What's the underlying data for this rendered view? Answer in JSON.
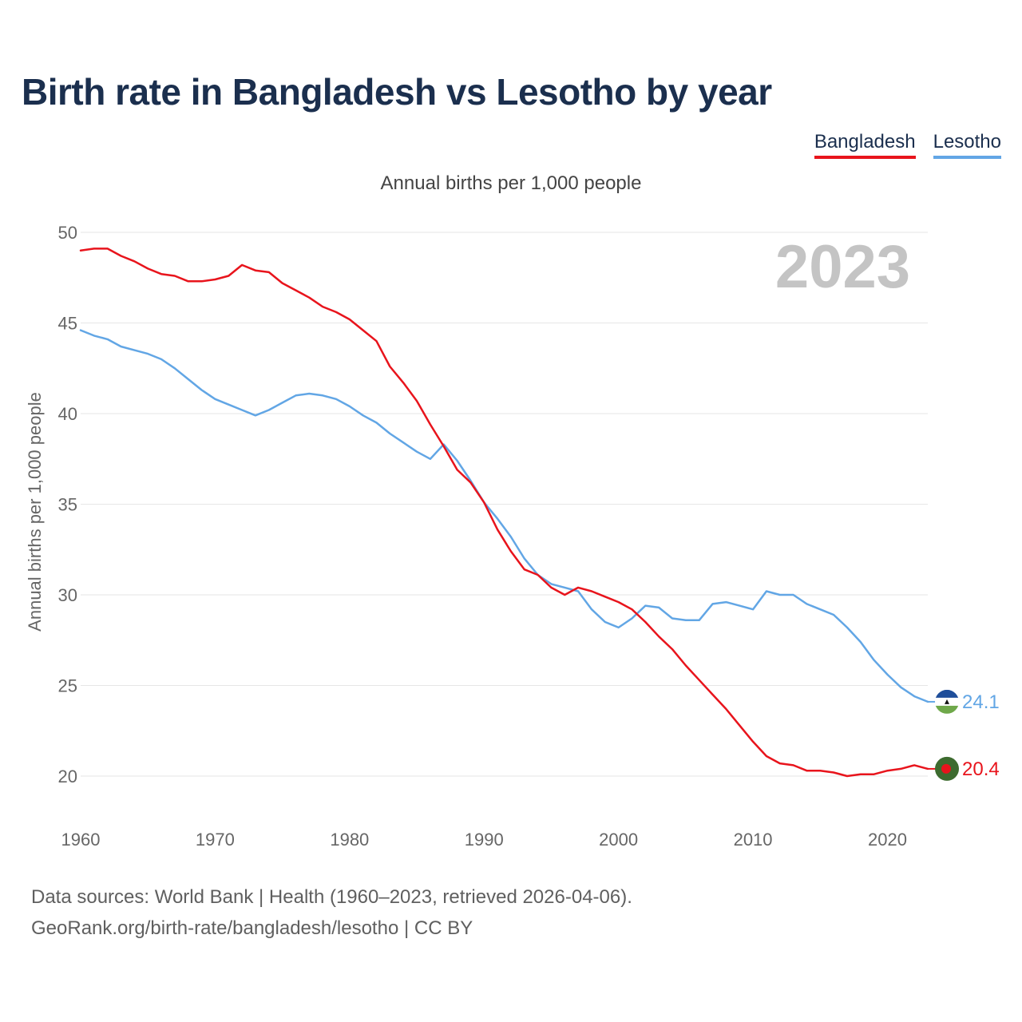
{
  "title": "Birth rate in Bangladesh vs Lesotho by year",
  "legend": [
    {
      "name": "Bangladesh",
      "color": "#e8141c"
    },
    {
      "name": "Lesotho",
      "color": "#62a6e5"
    }
  ],
  "subtitle": "Annual births per 1,000 people",
  "year_label": "2023",
  "footer": {
    "line1": "Data sources: World Bank | Health (1960–2023, retrieved 2026-04-06).",
    "line2": "GeoRank.org/birth-rate/bangladesh/lesotho | CC BY"
  },
  "chart_data": {
    "type": "line",
    "title": "Birth rate in Bangladesh vs Lesotho by year",
    "xlabel": "",
    "ylabel": "Annual births per 1,000 people",
    "xlim": [
      1960,
      2023
    ],
    "ylim": [
      18,
      50
    ],
    "x_ticks": [
      1960,
      1970,
      1980,
      1990,
      2000,
      2010,
      2020
    ],
    "y_ticks": [
      20,
      25,
      30,
      35,
      40,
      45,
      50
    ],
    "x": [
      1960,
      1961,
      1962,
      1963,
      1964,
      1965,
      1966,
      1967,
      1968,
      1969,
      1970,
      1971,
      1972,
      1973,
      1974,
      1975,
      1976,
      1977,
      1978,
      1979,
      1980,
      1981,
      1982,
      1983,
      1984,
      1985,
      1986,
      1987,
      1988,
      1989,
      1990,
      1991,
      1992,
      1993,
      1994,
      1995,
      1996,
      1997,
      1998,
      1999,
      2000,
      2001,
      2002,
      2003,
      2004,
      2005,
      2006,
      2007,
      2008,
      2009,
      2010,
      2011,
      2012,
      2013,
      2014,
      2015,
      2016,
      2017,
      2018,
      2019,
      2020,
      2021,
      2022,
      2023
    ],
    "series": [
      {
        "name": "Bangladesh",
        "color": "#e8141c",
        "end_label": "20.4",
        "values": [
          49.0,
          49.1,
          49.1,
          48.7,
          48.4,
          48.0,
          47.7,
          47.6,
          47.3,
          47.3,
          47.4,
          47.6,
          48.2,
          47.9,
          47.8,
          47.2,
          46.8,
          46.4,
          45.9,
          45.6,
          45.2,
          44.6,
          44.0,
          42.6,
          41.7,
          40.7,
          39.4,
          38.2,
          36.9,
          36.2,
          35.1,
          33.6,
          32.4,
          31.4,
          31.1,
          30.4,
          30.0,
          30.4,
          30.2,
          29.9,
          29.6,
          29.2,
          28.5,
          27.7,
          27.0,
          26.1,
          25.3,
          24.5,
          23.7,
          22.8,
          21.9,
          21.1,
          20.7,
          20.6,
          20.3,
          20.3,
          20.2,
          20.0,
          20.1,
          20.1,
          20.3,
          20.4,
          20.6,
          20.4
        ]
      },
      {
        "name": "Lesotho",
        "color": "#62a6e5",
        "end_label": "24.1",
        "values": [
          44.6,
          44.3,
          44.1,
          43.7,
          43.5,
          43.3,
          43.0,
          42.5,
          41.9,
          41.3,
          40.8,
          40.5,
          40.2,
          39.9,
          40.2,
          40.6,
          41.0,
          41.1,
          41.0,
          40.8,
          40.4,
          39.9,
          39.5,
          38.9,
          38.4,
          37.9,
          37.5,
          38.3,
          37.4,
          36.3,
          35.1,
          34.2,
          33.2,
          32.0,
          31.1,
          30.6,
          30.4,
          30.2,
          29.2,
          28.5,
          28.2,
          28.7,
          29.4,
          29.3,
          28.7,
          28.6,
          28.6,
          29.5,
          29.6,
          29.4,
          29.2,
          30.2,
          30.0,
          30.0,
          29.5,
          29.2,
          28.9,
          28.2,
          27.4,
          26.4,
          25.6,
          24.9,
          24.4,
          24.1
        ]
      }
    ]
  }
}
